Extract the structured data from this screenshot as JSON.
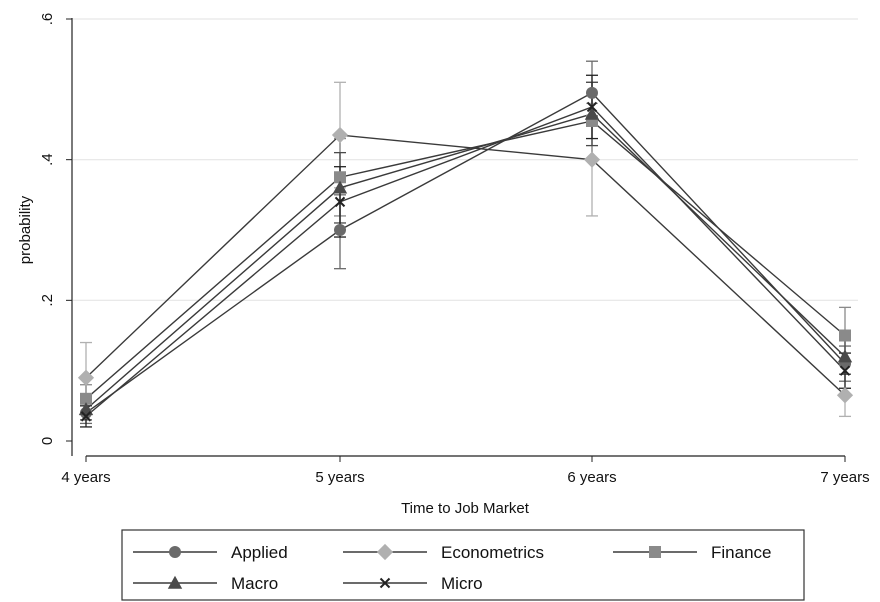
{
  "chart_data": {
    "type": "line",
    "xlabel": "Time to Job Market",
    "ylabel": "probability",
    "categories": [
      "4 years",
      "5 years",
      "6 years",
      "7 years"
    ],
    "ylim": [
      0,
      0.6
    ],
    "yticks": [
      0,
      0.2,
      0.4,
      0.6
    ],
    "ytick_labels": [
      "0",
      ".2",
      ".4",
      ".6"
    ],
    "grid": true,
    "legend": {
      "placement": "bottom"
    },
    "series": [
      {
        "name": "Applied",
        "marker": "circle",
        "color": "#6a6a6a",
        "values": [
          0.04,
          0.3,
          0.495,
          0.11
        ],
        "ci_low": [
          0.025,
          0.245,
          0.45,
          0.085
        ],
        "ci_high": [
          0.055,
          0.35,
          0.54,
          0.135
        ]
      },
      {
        "name": "Econometrics",
        "marker": "diamond",
        "color": "#b0b0b0",
        "values": [
          0.09,
          0.435,
          0.4,
          0.065
        ],
        "ci_low": [
          0.04,
          0.36,
          0.32,
          0.035
        ],
        "ci_high": [
          0.14,
          0.51,
          0.48,
          0.095
        ]
      },
      {
        "name": "Finance",
        "marker": "square",
        "color": "#8a8a8a",
        "values": [
          0.06,
          0.375,
          0.455,
          0.15
        ],
        "ci_low": [
          0.04,
          0.32,
          0.4,
          0.11
        ],
        "ci_high": [
          0.08,
          0.43,
          0.51,
          0.19
        ]
      },
      {
        "name": "Macro",
        "marker": "triangle",
        "color": "#4a4a4a",
        "values": [
          0.045,
          0.36,
          0.465,
          0.12
        ],
        "ci_low": [
          0.03,
          0.31,
          0.42,
          0.095
        ],
        "ci_high": [
          0.06,
          0.41,
          0.51,
          0.145
        ]
      },
      {
        "name": "Micro",
        "marker": "x",
        "color": "#222222",
        "values": [
          0.035,
          0.34,
          0.475,
          0.1
        ],
        "ci_low": [
          0.02,
          0.29,
          0.43,
          0.075
        ],
        "ci_high": [
          0.05,
          0.39,
          0.52,
          0.125
        ]
      }
    ]
  }
}
